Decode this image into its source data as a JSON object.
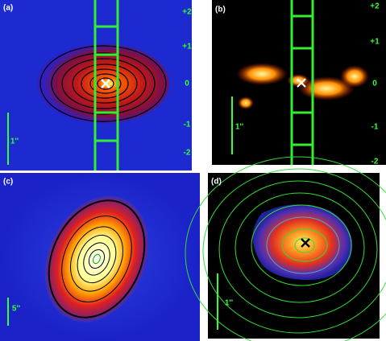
{
  "panels": [
    {
      "label": "(a)",
      "ticks": [
        "+2",
        "+1",
        "0",
        "-1",
        "-2"
      ],
      "scale": "1''"
    },
    {
      "label": "(b)",
      "ticks": [
        "+2",
        "+1",
        "0",
        "-1",
        "-2"
      ],
      "scale": "1''"
    },
    {
      "label": "(c)",
      "scale": "5''"
    },
    {
      "label": "(d)",
      "scale": "1''"
    }
  ]
}
